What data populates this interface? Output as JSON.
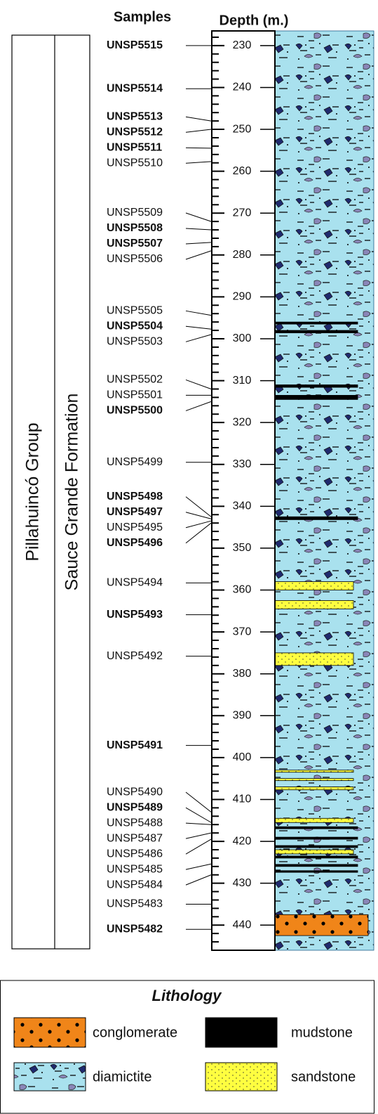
{
  "header": {
    "samples": "Samples",
    "depth": "Depth (m.)"
  },
  "units": {
    "group": "Pillahuincó Group",
    "formation": "Sauce Grande Formation"
  },
  "depth_lim": [
    226.5,
    446
  ],
  "depth_ticks": [
    230,
    240,
    250,
    260,
    270,
    280,
    290,
    300,
    310,
    320,
    330,
    340,
    350,
    360,
    370,
    380,
    390,
    400,
    410,
    420,
    430,
    440
  ],
  "samples": [
    {
      "label": "UNSP5515",
      "depth": 230,
      "bold": true
    },
    {
      "label": "UNSP5514",
      "depth": 240.3,
      "bold": true
    },
    {
      "label": "UNSP5513",
      "depth": 248,
      "bold": true
    },
    {
      "label": "UNSP5512",
      "depth": 250,
      "bold": true
    },
    {
      "label": "UNSP5511",
      "depth": 254.5,
      "bold": true
    },
    {
      "label": "UNSP5510",
      "depth": 257.7,
      "bold": false
    },
    {
      "label": "UNSP5509",
      "depth": 272,
      "bold": false
    },
    {
      "label": "UNSP5508",
      "depth": 274,
      "bold": true
    },
    {
      "label": "UNSP5507",
      "depth": 277,
      "bold": true
    },
    {
      "label": "UNSP5506",
      "depth": 279,
      "bold": false
    },
    {
      "label": "UNSP5505",
      "depth": 294.4,
      "bold": false
    },
    {
      "label": "UNSP5504",
      "depth": 297.7,
      "bold": true
    },
    {
      "label": "UNSP5503",
      "depth": 299,
      "bold": false
    },
    {
      "label": "UNSP5502",
      "depth": 312,
      "bold": false
    },
    {
      "label": "UNSP5501",
      "depth": 313.5,
      "bold": false
    },
    {
      "label": "UNSP5500",
      "depth": 315,
      "bold": true
    },
    {
      "label": "UNSP5499",
      "depth": 329.5,
      "bold": false
    },
    {
      "label": "UNSP5498",
      "depth": 342.5,
      "bold": true
    },
    {
      "label": "UNSP5497",
      "depth": 343,
      "bold": true
    },
    {
      "label": "UNSP5495",
      "depth": 343.5,
      "bold": false
    },
    {
      "label": "UNSP5496",
      "depth": 344,
      "bold": true
    },
    {
      "label": "UNSP5494",
      "depth": 358.3,
      "bold": false
    },
    {
      "label": "UNSP5493",
      "depth": 365.9,
      "bold": true
    },
    {
      "label": "UNSP5492",
      "depth": 375.8,
      "bold": false
    },
    {
      "label": "UNSP5491",
      "depth": 397.1,
      "bold": true
    },
    {
      "label": "UNSP5490",
      "depth": 413,
      "bold": false
    },
    {
      "label": "UNSP5489",
      "depth": 415.5,
      "bold": true
    },
    {
      "label": "UNSP5488",
      "depth": 416,
      "bold": false
    },
    {
      "label": "UNSP5487",
      "depth": 418,
      "bold": false
    },
    {
      "label": "UNSP5486",
      "depth": 419.5,
      "bold": false
    },
    {
      "label": "UNSP5485",
      "depth": 425.4,
      "bold": false
    },
    {
      "label": "UNSP5484",
      "depth": 428,
      "bold": false
    },
    {
      "label": "UNSP5483",
      "depth": 435,
      "bold": false
    },
    {
      "label": "UNSP5482",
      "depth": 441,
      "bold": true
    }
  ],
  "layers": [
    {
      "lithology": "diamictite",
      "top": 226.5,
      "bottom": 446
    },
    {
      "lithology": "mudstone",
      "top": 296,
      "bottom": 296.5
    },
    {
      "lithology": "mudstone",
      "top": 298,
      "bottom": 298.6
    },
    {
      "lithology": "mudstone",
      "top": 311,
      "bottom": 311.6
    },
    {
      "lithology": "mudstone",
      "top": 313.5,
      "bottom": 314.5
    },
    {
      "lithology": "mudstone",
      "top": 342.5,
      "bottom": 343.2
    },
    {
      "lithology": "sandstone",
      "top": 358,
      "bottom": 360
    },
    {
      "lithology": "sandstone",
      "top": 362.5,
      "bottom": 364.5
    },
    {
      "lithology": "sandstone",
      "top": 375,
      "bottom": 378
    },
    {
      "lithology": "sandstone",
      "top": 403,
      "bottom": 403.5
    },
    {
      "lithology": "sandstone",
      "top": 405,
      "bottom": 405.5
    },
    {
      "lithology": "sandstone",
      "top": 407,
      "bottom": 407.7
    },
    {
      "lithology": "sandstone",
      "top": 414.5,
      "bottom": 415.5
    },
    {
      "lithology": "mudstone",
      "top": 416.5,
      "bottom": 417
    },
    {
      "lithology": "mudstone",
      "top": 419,
      "bottom": 419.5
    },
    {
      "lithology": "mudstone",
      "top": 421,
      "bottom": 421.5
    },
    {
      "lithology": "sandstone",
      "top": 422,
      "bottom": 423
    },
    {
      "lithology": "mudstone",
      "top": 423.5,
      "bottom": 424
    },
    {
      "lithology": "mudstone",
      "top": 425.5,
      "bottom": 426
    },
    {
      "lithology": "mudstone",
      "top": 427,
      "bottom": 427.4
    },
    {
      "lithology": "conglomerate",
      "top": 437.5,
      "bottom": 442.5
    }
  ],
  "legend": {
    "title": "Lithology",
    "items": [
      {
        "label": "conglomerate"
      },
      {
        "label": "mudstone"
      },
      {
        "label": "diamictite"
      },
      {
        "label": "sandstone"
      }
    ]
  }
}
